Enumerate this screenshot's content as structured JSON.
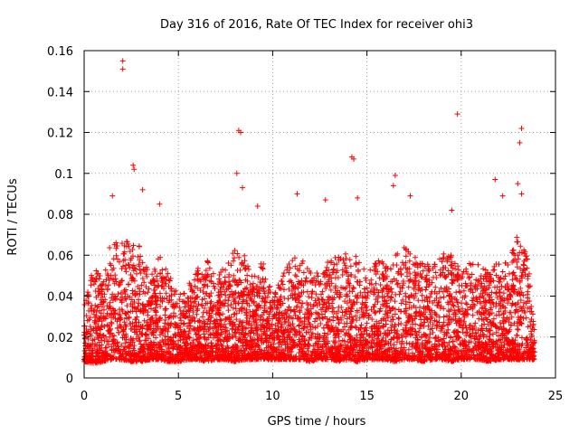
{
  "chart_data": {
    "type": "scatter",
    "title": "Day 316 of 2016, Rate Of TEC Index for receiver ohi3",
    "xlabel": "GPS time / hours",
    "ylabel": "ROTI / TECUs",
    "xlim": [
      0,
      25
    ],
    "ylim": [
      0,
      0.16
    ],
    "xticks": [
      0,
      5,
      10,
      15,
      20,
      25
    ],
    "yticks": [
      0,
      0.02,
      0.04,
      0.06,
      0.08,
      0.1,
      0.12,
      0.14,
      0.16
    ],
    "xtick_labels": [
      "0",
      "5",
      "10",
      "15",
      "20",
      "25"
    ],
    "ytick_labels": [
      "0",
      "0.02",
      "0.04",
      "0.06",
      "0.08",
      "0.1",
      "0.12",
      "0.14",
      "0.16"
    ],
    "grid": true,
    "marker": "+",
    "color": "#ff0000",
    "data_extent_hours": [
      0,
      23.9
    ],
    "notable_points": [
      {
        "x": 2.05,
        "y": 0.155
      },
      {
        "x": 2.05,
        "y": 0.151
      },
      {
        "x": 19.8,
        "y": 0.129
      },
      {
        "x": 23.2,
        "y": 0.122
      },
      {
        "x": 8.2,
        "y": 0.121
      },
      {
        "x": 8.3,
        "y": 0.12
      },
      {
        "x": 23.1,
        "y": 0.115
      },
      {
        "x": 14.2,
        "y": 0.108
      },
      {
        "x": 14.3,
        "y": 0.107
      },
      {
        "x": 2.6,
        "y": 0.104
      },
      {
        "x": 2.65,
        "y": 0.102
      },
      {
        "x": 8.1,
        "y": 0.1
      },
      {
        "x": 16.5,
        "y": 0.099
      },
      {
        "x": 21.8,
        "y": 0.097
      },
      {
        "x": 8.4,
        "y": 0.093
      },
      {
        "x": 3.1,
        "y": 0.092
      },
      {
        "x": 23.0,
        "y": 0.095
      },
      {
        "x": 23.2,
        "y": 0.09
      },
      {
        "x": 17.3,
        "y": 0.089
      },
      {
        "x": 16.4,
        "y": 0.094
      },
      {
        "x": 22.2,
        "y": 0.089
      },
      {
        "x": 1.5,
        "y": 0.089
      },
      {
        "x": 11.3,
        "y": 0.09
      },
      {
        "x": 14.5,
        "y": 0.088
      },
      {
        "x": 4.0,
        "y": 0.085
      },
      {
        "x": 12.8,
        "y": 0.087
      },
      {
        "x": 9.2,
        "y": 0.084
      },
      {
        "x": 19.5,
        "y": 0.082
      }
    ],
    "envelope_hours": [
      0,
      0.5,
      1,
      1.5,
      2,
      2.5,
      3,
      3.5,
      4,
      4.5,
      5,
      5.5,
      6,
      6.5,
      7,
      7.5,
      8,
      8.5,
      9,
      9.5,
      10,
      10.5,
      11,
      11.5,
      12,
      12.5,
      13,
      13.5,
      14,
      14.5,
      15,
      15.5,
      16,
      16.5,
      17,
      17.5,
      18,
      18.5,
      19,
      19.5,
      20,
      20.5,
      21,
      21.5,
      22,
      22.5,
      23,
      23.5,
      23.9
    ],
    "envelope_upper": [
      0.035,
      0.055,
      0.05,
      0.07,
      0.07,
      0.065,
      0.065,
      0.05,
      0.06,
      0.055,
      0.04,
      0.045,
      0.055,
      0.058,
      0.05,
      0.055,
      0.065,
      0.06,
      0.05,
      0.058,
      0.04,
      0.05,
      0.06,
      0.058,
      0.055,
      0.05,
      0.058,
      0.06,
      0.062,
      0.06,
      0.05,
      0.06,
      0.055,
      0.06,
      0.065,
      0.06,
      0.058,
      0.055,
      0.06,
      0.065,
      0.05,
      0.06,
      0.058,
      0.05,
      0.06,
      0.058,
      0.07,
      0.06,
      0.03
    ],
    "envelope_lower": [
      0.008,
      0.007,
      0.008,
      0.009,
      0.009,
      0.008,
      0.008,
      0.009,
      0.009,
      0.008,
      0.008,
      0.009,
      0.009,
      0.008,
      0.009,
      0.009,
      0.008,
      0.009,
      0.009,
      0.009,
      0.009,
      0.009,
      0.009,
      0.009,
      0.008,
      0.009,
      0.009,
      0.008,
      0.009,
      0.008,
      0.009,
      0.009,
      0.009,
      0.008,
      0.009,
      0.009,
      0.008,
      0.009,
      0.009,
      0.008,
      0.009,
      0.009,
      0.009,
      0.008,
      0.009,
      0.009,
      0.009,
      0.009,
      0.009
    ]
  }
}
